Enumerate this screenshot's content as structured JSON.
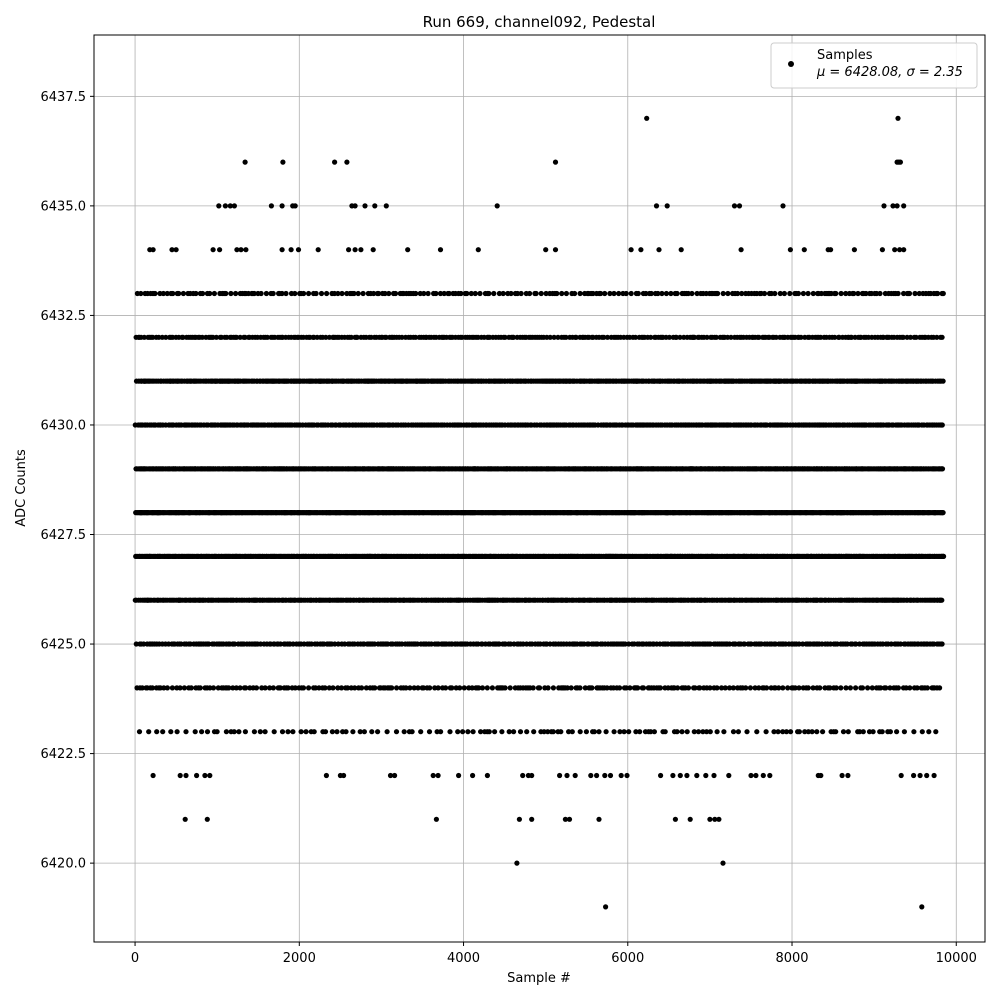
{
  "chart_data": {
    "type": "scatter",
    "title": "Run 669, channel092, Pedestal",
    "xlabel": "Sample #",
    "ylabel": "ADC Counts",
    "xlim": [
      -500,
      10350
    ],
    "ylim": [
      6418.2,
      6438.9
    ],
    "x_ticks": [
      0,
      2000,
      4000,
      6000,
      8000,
      10000
    ],
    "x_tick_labels": [
      "0",
      "2000",
      "4000",
      "6000",
      "8000",
      "10000"
    ],
    "y_ticks": [
      6420.0,
      6422.5,
      6425.0,
      6427.5,
      6430.0,
      6432.5,
      6435.0,
      6437.5
    ],
    "y_tick_labels": [
      "6420.0",
      "6422.5",
      "6425.0",
      "6427.5",
      "6430.0",
      "6432.5",
      "6435.0",
      "6437.5"
    ],
    "grid": true,
    "legend_position": "top-right",
    "series": [
      {
        "name": "Samples",
        "color": "#000000",
        "marker": "circle",
        "x_range": [
          0,
          9850
        ],
        "points_sparse": [
          {
            "x": 6230,
            "y": 6437
          },
          {
            "x": 9290,
            "y": 6437
          },
          {
            "x": 1340,
            "y": 6436
          },
          {
            "x": 1800,
            "y": 6436
          },
          {
            "x": 2430,
            "y": 6436
          },
          {
            "x": 2580,
            "y": 6436
          },
          {
            "x": 5120,
            "y": 6436
          },
          {
            "x": 9280,
            "y": 6436
          },
          {
            "x": 9300,
            "y": 6436
          },
          {
            "x": 9320,
            "y": 6436
          },
          {
            "x": 1020,
            "y": 6435
          },
          {
            "x": 1100,
            "y": 6435
          },
          {
            "x": 1160,
            "y": 6435
          },
          {
            "x": 1210,
            "y": 6435
          },
          {
            "x": 1660,
            "y": 6435
          },
          {
            "x": 1790,
            "y": 6435
          },
          {
            "x": 1920,
            "y": 6435
          },
          {
            "x": 1950,
            "y": 6435
          },
          {
            "x": 2640,
            "y": 6435
          },
          {
            "x": 2680,
            "y": 6435
          },
          {
            "x": 2800,
            "y": 6435
          },
          {
            "x": 2920,
            "y": 6435
          },
          {
            "x": 3060,
            "y": 6435
          },
          {
            "x": 4410,
            "y": 6435
          },
          {
            "x": 6350,
            "y": 6435
          },
          {
            "x": 6480,
            "y": 6435
          },
          {
            "x": 7300,
            "y": 6435
          },
          {
            "x": 7360,
            "y": 6435
          },
          {
            "x": 7890,
            "y": 6435
          },
          {
            "x": 9120,
            "y": 6435
          },
          {
            "x": 9230,
            "y": 6435
          },
          {
            "x": 9280,
            "y": 6435
          },
          {
            "x": 9360,
            "y": 6435
          },
          {
            "x": 180,
            "y": 6434
          },
          {
            "x": 220,
            "y": 6434
          },
          {
            "x": 450,
            "y": 6434
          },
          {
            "x": 500,
            "y": 6434
          },
          {
            "x": 950,
            "y": 6434
          },
          {
            "x": 1030,
            "y": 6434
          },
          {
            "x": 1240,
            "y": 6434
          },
          {
            "x": 1290,
            "y": 6434
          },
          {
            "x": 1350,
            "y": 6434
          },
          {
            "x": 1790,
            "y": 6434
          },
          {
            "x": 1900,
            "y": 6434
          },
          {
            "x": 1990,
            "y": 6434
          },
          {
            "x": 2230,
            "y": 6434
          },
          {
            "x": 2600,
            "y": 6434
          },
          {
            "x": 2680,
            "y": 6434
          },
          {
            "x": 2750,
            "y": 6434
          },
          {
            "x": 2900,
            "y": 6434
          },
          {
            "x": 3320,
            "y": 6434
          },
          {
            "x": 3720,
            "y": 6434
          },
          {
            "x": 4180,
            "y": 6434
          },
          {
            "x": 5000,
            "y": 6434
          },
          {
            "x": 5120,
            "y": 6434
          },
          {
            "x": 6040,
            "y": 6434
          },
          {
            "x": 6160,
            "y": 6434
          },
          {
            "x": 6380,
            "y": 6434
          },
          {
            "x": 6650,
            "y": 6434
          },
          {
            "x": 7380,
            "y": 6434
          },
          {
            "x": 7980,
            "y": 6434
          },
          {
            "x": 8150,
            "y": 6434
          },
          {
            "x": 8440,
            "y": 6434
          },
          {
            "x": 8470,
            "y": 6434
          },
          {
            "x": 8760,
            "y": 6434
          },
          {
            "x": 9100,
            "y": 6434
          },
          {
            "x": 9250,
            "y": 6434
          },
          {
            "x": 9310,
            "y": 6434
          },
          {
            "x": 9360,
            "y": 6434
          },
          {
            "x": 220,
            "y": 6422
          },
          {
            "x": 550,
            "y": 6422
          },
          {
            "x": 620,
            "y": 6422
          },
          {
            "x": 750,
            "y": 6422
          },
          {
            "x": 850,
            "y": 6422
          },
          {
            "x": 910,
            "y": 6422
          },
          {
            "x": 2330,
            "y": 6422
          },
          {
            "x": 2500,
            "y": 6422
          },
          {
            "x": 2540,
            "y": 6422
          },
          {
            "x": 3110,
            "y": 6422
          },
          {
            "x": 3160,
            "y": 6422
          },
          {
            "x": 3630,
            "y": 6422
          },
          {
            "x": 3690,
            "y": 6422
          },
          {
            "x": 3940,
            "y": 6422
          },
          {
            "x": 4110,
            "y": 6422
          },
          {
            "x": 4290,
            "y": 6422
          },
          {
            "x": 4720,
            "y": 6422
          },
          {
            "x": 4790,
            "y": 6422
          },
          {
            "x": 4830,
            "y": 6422
          },
          {
            "x": 5170,
            "y": 6422
          },
          {
            "x": 5260,
            "y": 6422
          },
          {
            "x": 5360,
            "y": 6422
          },
          {
            "x": 5550,
            "y": 6422
          },
          {
            "x": 5620,
            "y": 6422
          },
          {
            "x": 5720,
            "y": 6422
          },
          {
            "x": 5790,
            "y": 6422
          },
          {
            "x": 5920,
            "y": 6422
          },
          {
            "x": 5990,
            "y": 6422
          },
          {
            "x": 6400,
            "y": 6422
          },
          {
            "x": 6550,
            "y": 6422
          },
          {
            "x": 6640,
            "y": 6422
          },
          {
            "x": 6720,
            "y": 6422
          },
          {
            "x": 6840,
            "y": 6422
          },
          {
            "x": 6950,
            "y": 6422
          },
          {
            "x": 7050,
            "y": 6422
          },
          {
            "x": 7230,
            "y": 6422
          },
          {
            "x": 7500,
            "y": 6422
          },
          {
            "x": 7560,
            "y": 6422
          },
          {
            "x": 7650,
            "y": 6422
          },
          {
            "x": 7730,
            "y": 6422
          },
          {
            "x": 8320,
            "y": 6422
          },
          {
            "x": 8350,
            "y": 6422
          },
          {
            "x": 8610,
            "y": 6422
          },
          {
            "x": 8680,
            "y": 6422
          },
          {
            "x": 9330,
            "y": 6422
          },
          {
            "x": 9480,
            "y": 6422
          },
          {
            "x": 9560,
            "y": 6422
          },
          {
            "x": 9640,
            "y": 6422
          },
          {
            "x": 9730,
            "y": 6422
          },
          {
            "x": 610,
            "y": 6421
          },
          {
            "x": 880,
            "y": 6421
          },
          {
            "x": 3670,
            "y": 6421
          },
          {
            "x": 4680,
            "y": 6421
          },
          {
            "x": 4830,
            "y": 6421
          },
          {
            "x": 5240,
            "y": 6421
          },
          {
            "x": 5290,
            "y": 6421
          },
          {
            "x": 5650,
            "y": 6421
          },
          {
            "x": 6580,
            "y": 6421
          },
          {
            "x": 6760,
            "y": 6421
          },
          {
            "x": 7000,
            "y": 6421
          },
          {
            "x": 7060,
            "y": 6421
          },
          {
            "x": 7110,
            "y": 6421
          },
          {
            "x": 4650,
            "y": 6420
          },
          {
            "x": 7160,
            "y": 6420
          },
          {
            "x": 5730,
            "y": 6419
          },
          {
            "x": 9580,
            "y": 6419
          }
        ]
      }
    ],
    "legend": {
      "label": "Samples",
      "stats_text": "μ = 6428.08, σ = 2.35"
    }
  }
}
